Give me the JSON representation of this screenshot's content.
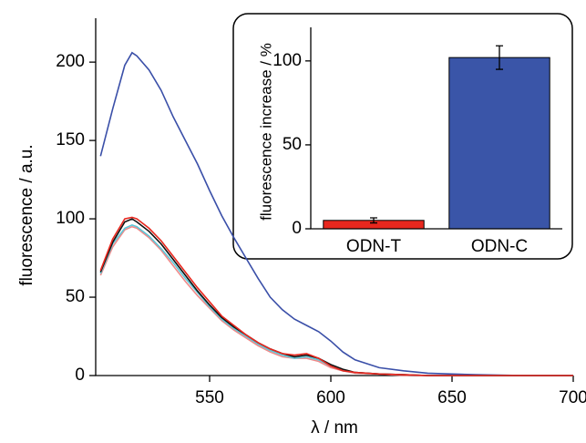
{
  "chart_data": [
    {
      "type": "line",
      "x_label": "λ / nm",
      "y_label": "fluorescence / a.u.",
      "x": [
        505,
        510,
        515,
        518,
        520,
        525,
        530,
        535,
        540,
        545,
        550,
        555,
        560,
        565,
        570,
        575,
        580,
        585,
        590,
        595,
        600,
        605,
        610,
        620,
        630,
        640,
        650,
        660,
        680,
        700
      ],
      "series": [
        {
          "color": "#3a4fa8",
          "values": [
            140,
            170,
            198,
            206,
            204,
            195,
            182,
            165,
            150,
            135,
            118,
            102,
            88,
            75,
            62,
            50,
            42,
            36,
            32,
            28,
            22,
            15,
            10,
            5,
            3,
            1.5,
            1,
            0.5,
            0,
            0
          ]
        },
        {
          "color": "#f08a8a",
          "values": [
            64,
            82,
            93,
            95,
            94,
            88,
            80,
            70,
            60,
            51,
            43,
            35,
            29,
            24,
            19,
            15,
            12,
            11,
            11,
            9,
            5,
            3,
            1.5,
            1,
            0,
            0,
            0,
            0,
            0,
            0
          ]
        },
        {
          "color": "#5ec8d8",
          "values": [
            65,
            84,
            94,
            96,
            95,
            89,
            81,
            72,
            62,
            53,
            44,
            36,
            30,
            25,
            20,
            16,
            13,
            11,
            12,
            10,
            6,
            3,
            2,
            1,
            0.5,
            0,
            0,
            0,
            0,
            0
          ]
        },
        {
          "color": "#111111",
          "values": [
            66,
            85,
            98,
            100,
            98,
            92,
            84,
            74,
            64,
            54,
            45,
            37,
            31,
            26,
            21,
            17,
            14,
            12,
            13,
            11,
            7,
            4,
            2,
            1,
            0.5,
            0,
            0,
            0,
            0,
            0
          ]
        },
        {
          "color": "#e8271e",
          "values": [
            67,
            87,
            100,
            101,
            100,
            94,
            86,
            76,
            66,
            56,
            47,
            38,
            32,
            26,
            21,
            17,
            14,
            13,
            14,
            11,
            6,
            3,
            2,
            1,
            0.5,
            0,
            0,
            0,
            0,
            0
          ]
        }
      ],
      "xlim": [
        503,
        700
      ],
      "xticks": [
        550,
        600,
        650,
        700
      ],
      "ylim": [
        0,
        228
      ],
      "yticks": [
        0,
        50,
        100,
        150,
        200
      ]
    },
    {
      "type": "bar",
      "y_label": "fluorescence increase / %",
      "categories": [
        "ODN-T",
        "ODN-C"
      ],
      "values": [
        5,
        102
      ],
      "errors": [
        1.5,
        7
      ],
      "colors": [
        "#e8271e",
        "#3a55a8"
      ],
      "ylim": [
        0,
        120
      ],
      "yticks": [
        0,
        50,
        100
      ]
    }
  ]
}
